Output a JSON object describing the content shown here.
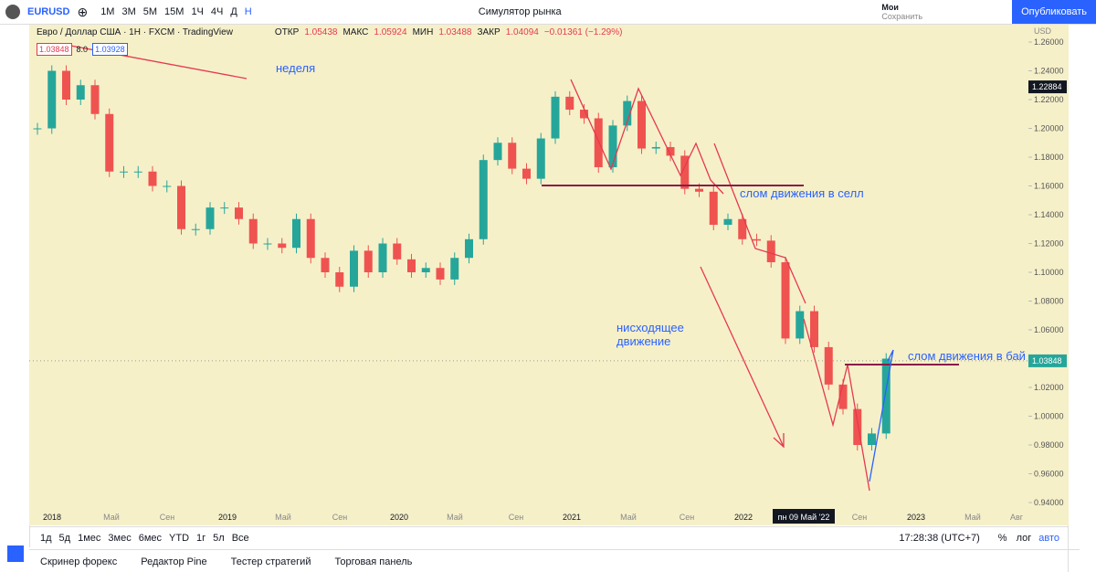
{
  "toolbar": {
    "symbol": "EURUSD",
    "intervals": [
      "1M",
      "3M",
      "5M",
      "15M",
      "1Ч",
      "4Ч",
      "Д",
      "Н"
    ],
    "simulator": "Симулятор рынка",
    "saved_top": "Мои",
    "saved_bottom": "Сохранить",
    "publish": "Опубликовать"
  },
  "legend": {
    "title": "Евро / Доллар США · 1H · FXCM · TradingView",
    "open_label": "ОТКР",
    "open": "1.05438",
    "high_label": "МАКС",
    "high": "1.05924",
    "low_label": "МИН",
    "low": "1.03488",
    "close_label": "ЗАКР",
    "close": "1.04094",
    "change": "−0.01361 (−1.29%)",
    "bid": "1.03848",
    "spread": "8.0",
    "ask": "1.03928"
  },
  "chart": {
    "currency": "USD",
    "ylim": [
      0.94,
      1.26
    ],
    "yticks": [
      {
        "value": 0.94,
        "label": "0.94000"
      },
      {
        "value": 0.96,
        "label": "0.96000"
      },
      {
        "value": 0.98,
        "label": "0.98000"
      },
      {
        "value": 1.0,
        "label": "1.00000"
      },
      {
        "value": 1.02,
        "label": "1.02000"
      },
      {
        "value": 1.04,
        "label": "1.04000"
      },
      {
        "value": 1.06,
        "label": "1.06000"
      },
      {
        "value": 1.08,
        "label": "1.08000"
      },
      {
        "value": 1.1,
        "label": "1.10000"
      },
      {
        "value": 1.12,
        "label": "1.12000"
      },
      {
        "value": 1.14,
        "label": "1.14000"
      },
      {
        "value": 1.16,
        "label": "1.16000"
      },
      {
        "value": 1.18,
        "label": "1.18000"
      },
      {
        "value": 1.2,
        "label": "1.20000"
      },
      {
        "value": 1.22,
        "label": "1.22000"
      },
      {
        "value": 1.24,
        "label": "1.24000"
      },
      {
        "value": 1.26,
        "label": "1.26000"
      }
    ],
    "price_labels": [
      1.22884,
      1.03848
    ],
    "x_labels": [
      "2018",
      "Май",
      "Сен",
      "2019",
      "Май",
      "Сен",
      "2020",
      "Май",
      "Сен",
      "2021",
      "Май",
      "Сен",
      "2022",
      "пн 09 Май '22",
      "Сен",
      "2023",
      "Май",
      "Авг"
    ],
    "closes": [
      1.2,
      1.24,
      1.22,
      1.23,
      1.21,
      1.17,
      1.17,
      1.17,
      1.16,
      1.16,
      1.13,
      1.13,
      1.145,
      1.145,
      1.137,
      1.12,
      1.12,
      1.117,
      1.137,
      1.11,
      1.1,
      1.09,
      1.115,
      1.1,
      1.12,
      1.109,
      1.1,
      1.103,
      1.095,
      1.11,
      1.123,
      1.178,
      1.19,
      1.172,
      1.165,
      1.193,
      1.222,
      1.213,
      1.207,
      1.173,
      1.202,
      1.219,
      1.186,
      1.187,
      1.181,
      1.158,
      1.156,
      1.133,
      1.137,
      1.123,
      1.122,
      1.107,
      1.054,
      1.073,
      1.048,
      1.022,
      1.005,
      0.98,
      0.988,
      1.04
    ],
    "annotations": [
      "неделя",
      "слом движения в селл",
      "нисходящее движение",
      "слом движения в бай"
    ]
  },
  "bottom_bar": {
    "ranges": [
      "1д",
      "5д",
      "1мес",
      "3мес",
      "6мес",
      "YTD",
      "1г",
      "5л",
      "Все"
    ],
    "time": "17:28:38 (UTC+7)",
    "percent": "%",
    "log": "лог",
    "auto": "авто"
  },
  "bottom_panel": [
    "Скринер форекс",
    "Редактор Pine",
    "Тестер стратегий",
    "Торговая панель"
  ]
}
